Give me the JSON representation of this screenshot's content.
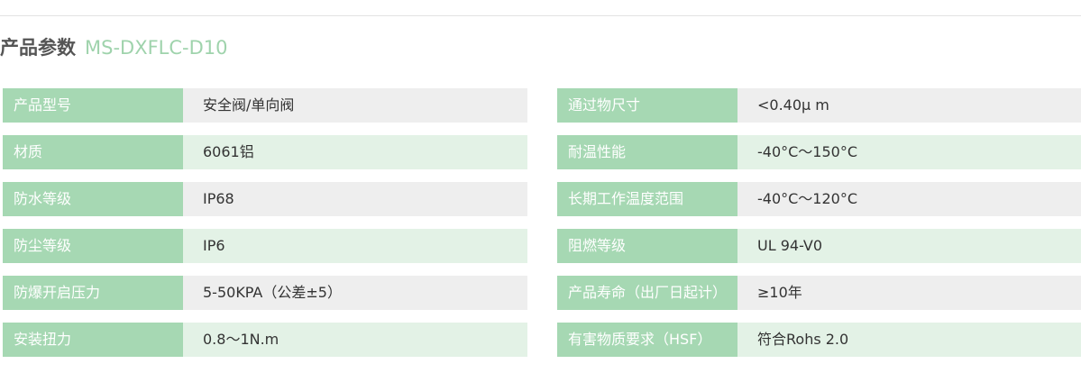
{
  "header": {
    "title": "产品参数",
    "model": "MS-DXFLC-D10"
  },
  "table": {
    "rows": [
      [
        "产品型号",
        "安全阀/单向阀",
        "通过物尺寸",
        "<0.40μ m"
      ],
      [
        "材质",
        "6061铝",
        "耐温性能",
        "-40°C～150°C"
      ],
      [
        "防水等级",
        "IP68",
        "长期工作温度范围",
        "-40°C～120°C"
      ],
      [
        "防尘等级",
        "IP6",
        "阻燃等级",
        "UL  94-V0"
      ],
      [
        "防爆开启压力",
        "5-50KPA（公差±5）",
        "产品寿命（出厂日起计）",
        "≥10年"
      ],
      [
        "安装扭力",
        "0.8～1N.m",
        "有害物质要求（HSF）",
        "符合Rohs 2.0"
      ]
    ]
  }
}
